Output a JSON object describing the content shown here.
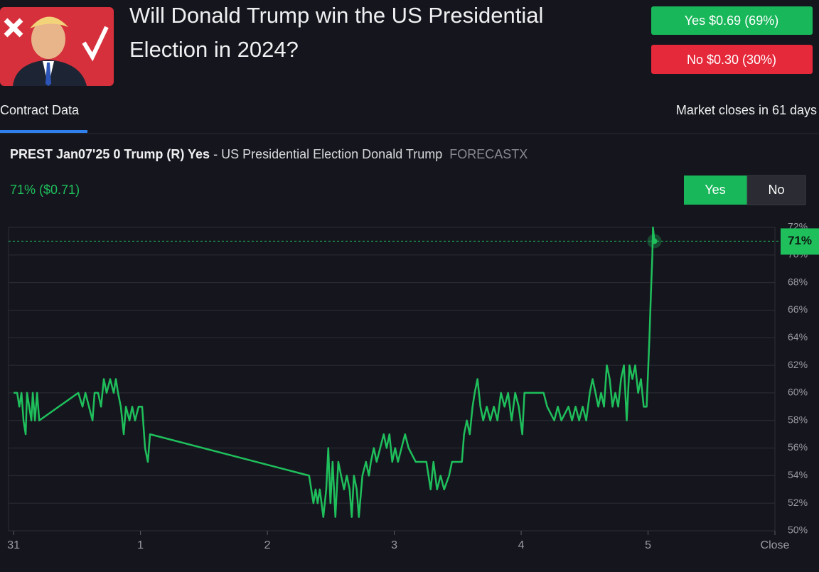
{
  "header": {
    "title_line1": "Will Donald Trump win the US Presidential",
    "title_line2": "Election in 2024?",
    "yes_button": "Yes $0.69 (69%)",
    "no_button": "No $0.30 (30%)"
  },
  "tabs": {
    "active": "Contract Data",
    "market_closes": "Market closes in 61 days"
  },
  "contract": {
    "name": "PREST Jan07'25 0 Trump (R) Yes",
    "description": "- US Presidential Election Donald Trump",
    "source": "FORECASTX",
    "price": "71% ($0.71)",
    "toggle": [
      "Yes",
      "No"
    ]
  },
  "chart_data": {
    "type": "line",
    "color": "#1fbf5c",
    "x": [
      0,
      0.028,
      0.045,
      0.062,
      0.078,
      0.095,
      0.106,
      0.123,
      0.14,
      0.151,
      0.168,
      0.185,
      0.202,
      0.51,
      0.543,
      0.566,
      0.594,
      0.622,
      0.638,
      0.666,
      0.689,
      0.711,
      0.733,
      0.761,
      0.789,
      0.806,
      0.823,
      0.845,
      0.868,
      0.885,
      0.913,
      0.935,
      0.957,
      0.985,
      1.013,
      1.036,
      1.058,
      1.075,
      2.329,
      2.346,
      2.363,
      2.38,
      2.396,
      2.413,
      2.441,
      2.464,
      2.48,
      2.497,
      2.514,
      2.536,
      2.559,
      2.581,
      2.604,
      2.626,
      2.648,
      2.665,
      2.682,
      2.704,
      2.721,
      2.749,
      2.777,
      2.8,
      2.816,
      2.839,
      2.861,
      2.889,
      2.917,
      2.94,
      2.962,
      2.984,
      3.007,
      3.029,
      3.057,
      3.085,
      3.113,
      3.169,
      3.253,
      3.287,
      3.309,
      3.337,
      3.365,
      3.393,
      3.432,
      3.455,
      3.533,
      3.55,
      3.572,
      3.595,
      3.617,
      3.634,
      3.656,
      3.679,
      3.701,
      3.729,
      3.757,
      3.785,
      3.813,
      3.841,
      3.869,
      3.897,
      3.925,
      3.953,
      3.981,
      4.009,
      4.026,
      4.177,
      4.205,
      4.261,
      4.289,
      4.317,
      4.373,
      4.401,
      4.429,
      4.457,
      4.485,
      4.513,
      4.541,
      4.563,
      4.586,
      4.608,
      4.63,
      4.653,
      4.675,
      4.698,
      4.72,
      4.742,
      4.765,
      4.787,
      4.81,
      4.832,
      4.854,
      4.877,
      4.899,
      4.922,
      4.944,
      4.966,
      4.989,
      5.011,
      5.022,
      5.034,
      5.039,
      5.05
    ],
    "values": [
      60,
      60,
      59,
      60,
      58,
      57,
      60,
      59,
      58,
      60,
      58,
      60,
      58,
      60,
      59,
      60,
      59,
      58,
      60,
      60,
      59,
      61,
      60,
      61,
      60,
      61,
      60,
      59,
      57,
      59,
      58,
      59,
      58,
      59,
      59,
      56,
      55,
      57,
      54,
      53,
      52,
      53,
      52,
      53,
      51,
      53,
      56,
      52,
      55,
      51,
      55,
      54,
      53,
      54,
      53,
      51,
      54,
      53,
      51,
      54,
      55,
      54,
      55,
      56,
      55,
      56,
      57,
      56,
      57,
      55,
      56,
      55,
      56,
      57,
      56,
      55,
      55,
      53,
      55,
      53,
      54,
      53,
      54,
      55,
      55,
      57,
      58,
      57,
      59,
      60,
      61,
      59,
      58,
      59,
      58,
      59,
      58,
      60,
      59,
      60,
      58,
      60,
      59,
      57,
      60,
      60,
      59,
      58,
      59,
      58,
      59,
      58,
      59,
      58,
      59,
      58,
      60,
      61,
      60,
      59,
      60,
      59,
      62,
      61,
      59,
      60,
      59,
      61,
      62,
      58,
      62,
      61,
      62,
      60,
      61,
      59,
      59,
      64,
      67,
      70,
      72,
      71
    ],
    "xlim": [
      -0.04,
      6
    ],
    "xticks": [
      {
        "value": 0,
        "label": "31"
      },
      1,
      2,
      3,
      4,
      5,
      {
        "value": 6,
        "label": "Close"
      }
    ],
    "ylim": [
      50,
      72
    ],
    "yticks": [
      {
        "value": 50,
        "label": "50%"
      },
      {
        "value": 52,
        "label": "52%"
      },
      {
        "value": 54,
        "label": "54%"
      },
      {
        "value": 56,
        "label": "56%"
      },
      {
        "value": 58,
        "label": "58%"
      },
      {
        "value": 60,
        "label": "60%"
      },
      {
        "value": 62,
        "label": "62%"
      },
      {
        "value": 64,
        "label": "64%"
      },
      {
        "value": 66,
        "label": "66%"
      },
      {
        "value": 68,
        "label": "68%"
      },
      {
        "value": 70,
        "label": "70%"
      },
      {
        "value": 72,
        "label": "72%"
      }
    ],
    "grid": true,
    "current": {
      "value": 71,
      "label": "71%"
    }
  }
}
